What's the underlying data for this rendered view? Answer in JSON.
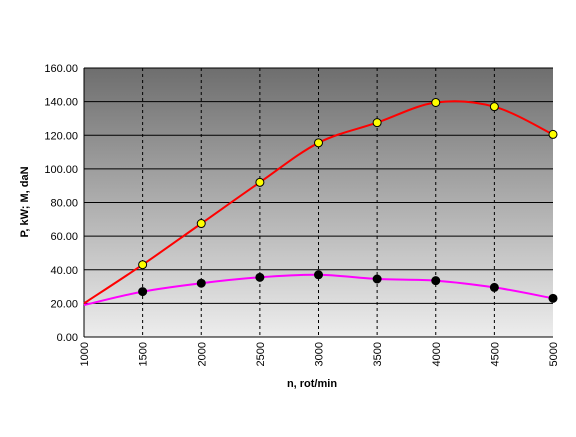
{
  "chart_data": {
    "type": "line",
    "xlabel": "n, rot/min",
    "ylabel": "P, kW; M, daN",
    "xlim": [
      1000,
      5000
    ],
    "ylim": [
      0,
      160
    ],
    "y_ticks": [
      "0.00",
      "20.00",
      "40.00",
      "60.00",
      "80.00",
      "100.00",
      "120.00",
      "140.00",
      "160.00"
    ],
    "x_ticks": [
      "1000",
      "1500",
      "2000",
      "2500",
      "3000",
      "3500",
      "4000",
      "4500",
      "5000"
    ],
    "grid": true,
    "background": "vertical gradient, dark gray at top to light gray at bottom",
    "series": [
      {
        "color": "#ff0000",
        "marker_color": "#ffff00",
        "x": [
          1000,
          1500,
          2000,
          2500,
          3000,
          3500,
          4000,
          4500,
          5000
        ],
        "values": [
          20,
          43,
          67.5,
          92,
          115.5,
          127.5,
          139.5,
          137,
          120.5
        ]
      },
      {
        "color": "#ff00ff",
        "marker_color": "#000000",
        "x": [
          1000,
          1500,
          2000,
          2500,
          3000,
          3500,
          4000,
          4500,
          5000
        ],
        "values": [
          19,
          27,
          32,
          35.5,
          37,
          34.5,
          33.5,
          29.5,
          23
        ]
      }
    ]
  }
}
